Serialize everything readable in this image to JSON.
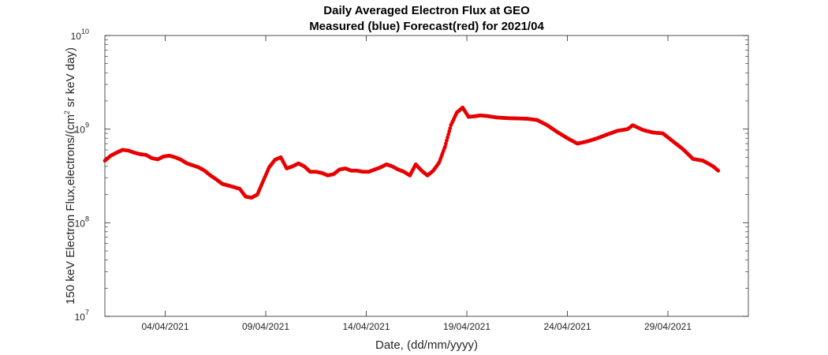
{
  "chart_data": {
    "type": "scatter",
    "title": "Daily Averaged Electron Flux at GEO",
    "subtitle": "Measured (blue) Forecast(red) for 2021/04",
    "xlabel": "Date, (dd/mm/yyyy)",
    "ylabel": {
      "pre": "150 keV Electron Flux,electrons/(cm",
      "sup": "2",
      "post": " sr keV day)"
    },
    "y_scale": "log",
    "ylim": [
      10000000,
      10000000000
    ],
    "y_ticks": [
      {
        "value": 10000000,
        "base": "10",
        "exp": "7"
      },
      {
        "value": 100000000,
        "base": "10",
        "exp": "8"
      },
      {
        "value": 1000000000,
        "base": "10",
        "exp": "9"
      },
      {
        "value": 10000000000,
        "base": "10",
        "exp": "10"
      }
    ],
    "xlim": [
      "2021-04-01",
      "2021-05-03"
    ],
    "x_ticks": [
      {
        "value": "2021-04-04",
        "label": "04/04/2021"
      },
      {
        "value": "2021-04-09",
        "label": "09/04/2021"
      },
      {
        "value": "2021-04-14",
        "label": "14/04/2021"
      },
      {
        "value": "2021-04-19",
        "label": "19/04/2021"
      },
      {
        "value": "2021-04-24",
        "label": "24/04/2021"
      },
      {
        "value": "2021-04-29",
        "label": "29/04/2021"
      }
    ],
    "grid": false,
    "series": [
      {
        "color": "#e80000",
        "points": [
          [
            "2021-04-01 00:00",
            460000000
          ],
          [
            "2021-04-01 07:00",
            520000000
          ],
          [
            "2021-04-01 14:00",
            560000000
          ],
          [
            "2021-04-01 21:00",
            600000000
          ],
          [
            "2021-04-02 04:00",
            590000000
          ],
          [
            "2021-04-02 11:00",
            560000000
          ],
          [
            "2021-04-02 18:00",
            540000000
          ],
          [
            "2021-04-03 01:00",
            530000000
          ],
          [
            "2021-04-03 08:00",
            490000000
          ],
          [
            "2021-04-03 15:00",
            475000000
          ],
          [
            "2021-04-03 22:00",
            510000000
          ],
          [
            "2021-04-04 05:00",
            520000000
          ],
          [
            "2021-04-04 12:00",
            500000000
          ],
          [
            "2021-04-04 19:00",
            470000000
          ],
          [
            "2021-04-05 02:00",
            430000000
          ],
          [
            "2021-04-05 09:00",
            410000000
          ],
          [
            "2021-04-05 16:00",
            390000000
          ],
          [
            "2021-04-05 23:00",
            360000000
          ],
          [
            "2021-04-06 06:00",
            320000000
          ],
          [
            "2021-04-06 13:00",
            290000000
          ],
          [
            "2021-04-06 20:00",
            260000000
          ],
          [
            "2021-04-07 03:00",
            250000000
          ],
          [
            "2021-04-07 10:00",
            240000000
          ],
          [
            "2021-04-07 17:00",
            230000000
          ],
          [
            "2021-04-08 00:00",
            190000000
          ],
          [
            "2021-04-08 07:00",
            185000000
          ],
          [
            "2021-04-08 14:00",
            200000000
          ],
          [
            "2021-04-08 21:00",
            280000000
          ],
          [
            "2021-04-09 04:00",
            390000000
          ],
          [
            "2021-04-09 11:00",
            470000000
          ],
          [
            "2021-04-09 18:00",
            500000000
          ],
          [
            "2021-04-10 01:00",
            380000000
          ],
          [
            "2021-04-10 08:00",
            400000000
          ],
          [
            "2021-04-10 15:00",
            430000000
          ],
          [
            "2021-04-10 22:00",
            400000000
          ],
          [
            "2021-04-11 05:00",
            350000000
          ],
          [
            "2021-04-11 12:00",
            350000000
          ],
          [
            "2021-04-11 19:00",
            340000000
          ],
          [
            "2021-04-12 02:00",
            320000000
          ],
          [
            "2021-04-12 09:00",
            330000000
          ],
          [
            "2021-04-12 16:00",
            370000000
          ],
          [
            "2021-04-12 23:00",
            380000000
          ],
          [
            "2021-04-13 06:00",
            360000000
          ],
          [
            "2021-04-13 13:00",
            360000000
          ],
          [
            "2021-04-13 20:00",
            350000000
          ],
          [
            "2021-04-14 03:00",
            350000000
          ],
          [
            "2021-04-14 10:00",
            370000000
          ],
          [
            "2021-04-14 17:00",
            390000000
          ],
          [
            "2021-04-15 00:00",
            420000000
          ],
          [
            "2021-04-15 07:00",
            400000000
          ],
          [
            "2021-04-15 14:00",
            370000000
          ],
          [
            "2021-04-15 21:00",
            350000000
          ],
          [
            "2021-04-16 04:00",
            320000000
          ],
          [
            "2021-04-16 11:00",
            420000000
          ],
          [
            "2021-04-16 18:00",
            360000000
          ],
          [
            "2021-04-17 01:00",
            320000000
          ],
          [
            "2021-04-17 08:00",
            360000000
          ],
          [
            "2021-04-17 15:00",
            440000000
          ],
          [
            "2021-04-17 22:00",
            650000000
          ],
          [
            "2021-04-18 05:00",
            1100000000
          ],
          [
            "2021-04-18 12:00",
            1500000000
          ],
          [
            "2021-04-18 19:00",
            1700000000
          ],
          [
            "2021-04-19 02:00",
            1350000000
          ],
          [
            "2021-04-19 09:00",
            1370000000
          ],
          [
            "2021-04-19 16:00",
            1400000000
          ],
          [
            "2021-04-20 00:00",
            1380000000
          ],
          [
            "2021-04-20 12:00",
            1330000000
          ],
          [
            "2021-04-21 00:00",
            1310000000
          ],
          [
            "2021-04-21 12:00",
            1300000000
          ],
          [
            "2021-04-22 00:00",
            1290000000
          ],
          [
            "2021-04-22 12:00",
            1250000000
          ],
          [
            "2021-04-23 00:00",
            1100000000
          ],
          [
            "2021-04-23 12:00",
            930000000
          ],
          [
            "2021-04-24 00:00",
            800000000
          ],
          [
            "2021-04-24 12:00",
            700000000
          ],
          [
            "2021-04-25 00:00",
            740000000
          ],
          [
            "2021-04-25 12:00",
            800000000
          ],
          [
            "2021-04-26 00:00",
            880000000
          ],
          [
            "2021-04-26 12:00",
            960000000
          ],
          [
            "2021-04-27 00:00",
            1000000000
          ],
          [
            "2021-04-27 06:00",
            1100000000
          ],
          [
            "2021-04-27 18:00",
            980000000
          ],
          [
            "2021-04-28 06:00",
            920000000
          ],
          [
            "2021-04-28 18:00",
            900000000
          ],
          [
            "2021-04-29 06:00",
            740000000
          ],
          [
            "2021-04-29 18:00",
            610000000
          ],
          [
            "2021-04-30 06:00",
            480000000
          ],
          [
            "2021-04-30 18:00",
            460000000
          ],
          [
            "2021-05-01 06:00",
            400000000
          ],
          [
            "2021-05-01 12:00",
            360000000
          ]
        ]
      }
    ]
  }
}
